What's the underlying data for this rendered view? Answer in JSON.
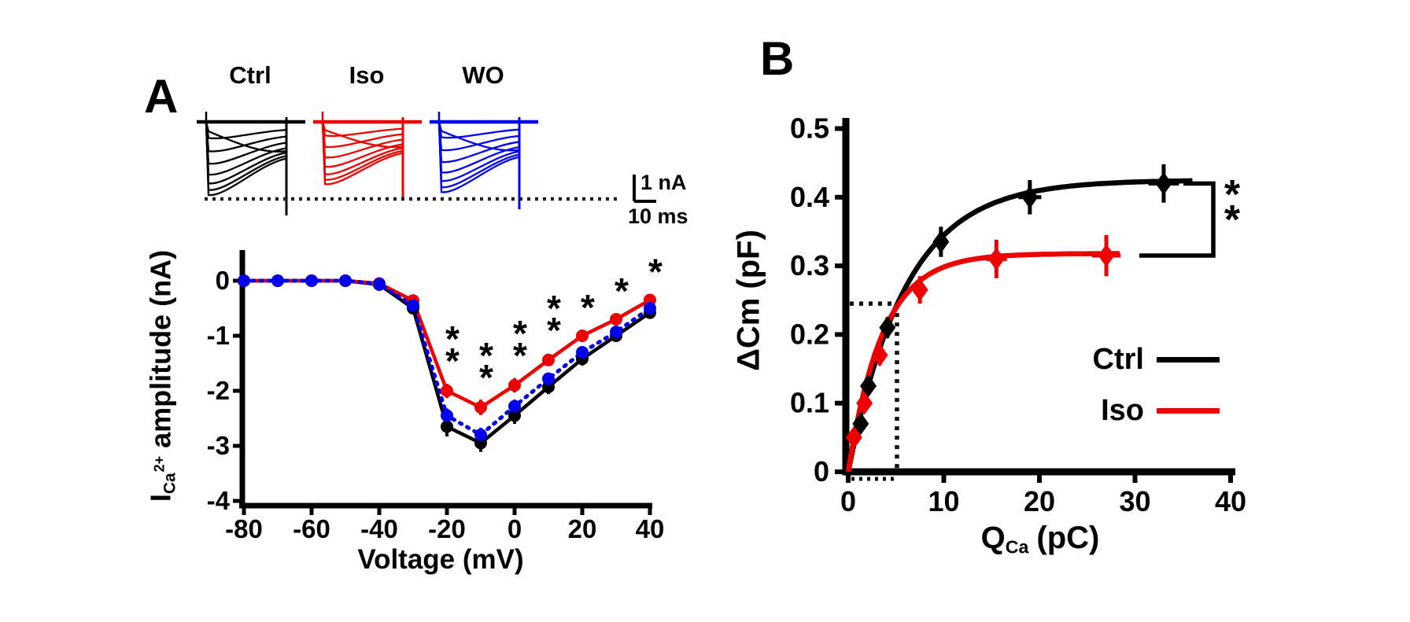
{
  "figure": {
    "panel_a": {
      "label": "A",
      "trace_groups": [
        {
          "name": "Ctrl",
          "color": "#000000",
          "relative_amplitude": 1.0
        },
        {
          "name": "Iso",
          "color": "#ee0000",
          "relative_amplitude": 0.85
        },
        {
          "name": "WO",
          "color": "#0000ee",
          "relative_amplitude": 0.96
        }
      ],
      "scalebar": {
        "amplitude": "1 nA",
        "duration": "10 ms"
      }
    },
    "panel_b": {
      "label": "B",
      "legend": [
        {
          "label": "Ctrl",
          "color": "#000000"
        },
        {
          "label": "Iso",
          "color": "#ee0000"
        }
      ],
      "significance_bracket_label": "**"
    }
  },
  "chart_data": [
    {
      "id": "iv_curve",
      "type": "line",
      "title": "",
      "xlabel": "Voltage (mV)",
      "ylabel": "ICa2+ amplitude (nA)",
      "ylabel_parts": {
        "main": "I",
        "sub": "Ca",
        "sup": "2+",
        "rest": "amplitude (nA)"
      },
      "xlim": [
        -80,
        40
      ],
      "ylim": [
        -4,
        0.5
      ],
      "xticks": [
        -80,
        -60,
        -40,
        -20,
        0,
        20,
        40
      ],
      "xtick_labels": [
        "-80",
        "-60",
        "-40",
        "-20",
        "0",
        "20",
        "40"
      ],
      "yticks": [
        0,
        -1,
        -2,
        -3,
        -4
      ],
      "ytick_labels": [
        "0",
        "-1",
        "-2",
        "-3",
        "-4"
      ],
      "grid": false,
      "x": [
        -80,
        -70,
        -60,
        -50,
        -40,
        -30,
        -20,
        -10,
        0,
        10,
        20,
        30,
        40
      ],
      "series": [
        {
          "name": "Ctrl",
          "color": "#000000",
          "line_style": "solid",
          "marker": "circle",
          "values": [
            0,
            0,
            0,
            0,
            -0.07,
            -0.5,
            -2.65,
            -2.95,
            -2.45,
            -1.93,
            -1.42,
            -1.0,
            -0.58
          ],
          "errors": [
            0.02,
            0.02,
            0.02,
            0.02,
            0.03,
            0.06,
            0.18,
            0.16,
            0.15,
            0.13,
            0.12,
            0.1,
            0.08
          ]
        },
        {
          "name": "Iso",
          "color": "#ee0000",
          "line_style": "solid",
          "marker": "circle",
          "values": [
            0,
            0,
            0,
            0,
            -0.05,
            -0.36,
            -2.0,
            -2.3,
            -1.9,
            -1.44,
            -1.0,
            -0.7,
            -0.35
          ],
          "errors": [
            0.02,
            0.02,
            0.02,
            0.02,
            0.03,
            0.05,
            0.13,
            0.14,
            0.13,
            0.11,
            0.09,
            0.07,
            0.06
          ]
        },
        {
          "name": "WO",
          "color": "#0000ee",
          "line_style": "dotted",
          "marker": "circle",
          "values": [
            0,
            0,
            0,
            0,
            -0.06,
            -0.45,
            -2.45,
            -2.8,
            -2.28,
            -1.78,
            -1.3,
            -0.93,
            -0.5
          ],
          "errors": [
            0.02,
            0.02,
            0.02,
            0.02,
            0.03,
            0.05,
            0.13,
            0.13,
            0.12,
            0.11,
            0.09,
            0.08,
            0.06
          ]
        }
      ],
      "significance": [
        {
          "voltage": -20,
          "label": "**"
        },
        {
          "voltage": -10,
          "label": "**"
        },
        {
          "voltage": 0,
          "label": "**"
        },
        {
          "voltage": 10,
          "label": "**"
        },
        {
          "voltage": 20,
          "label": "*"
        },
        {
          "voltage": 30,
          "label": "*"
        },
        {
          "voltage": 40,
          "label": "*"
        }
      ]
    },
    {
      "id": "cm_vs_qca",
      "type": "scatter",
      "title": "",
      "xlabel": "QCa (pC)",
      "xlabel_parts": {
        "main": "Q",
        "sub": "Ca",
        "rest": "(pC)"
      },
      "ylabel": "ΔCm (pF)",
      "xlim": [
        0,
        40
      ],
      "ylim": [
        0,
        0.5
      ],
      "xticks": [
        0,
        10,
        20,
        30,
        40
      ],
      "xtick_labels": [
        "0",
        "10",
        "20",
        "30",
        "40"
      ],
      "yticks": [
        0,
        0.1,
        0.2,
        0.3,
        0.4,
        0.5
      ],
      "ytick_labels": [
        "0",
        "0.1",
        "0.2",
        "0.3",
        "0.4",
        "0.5"
      ],
      "grid": false,
      "legend_position": "lower right",
      "series": [
        {
          "name": "Ctrl",
          "color": "#000000",
          "marker": "diamond",
          "points": [
            [
              1.3,
              0.07
            ],
            [
              2.1,
              0.125
            ],
            [
              4.1,
              0.21
            ],
            [
              9.7,
              0.335
            ],
            [
              19,
              0.4
            ],
            [
              33,
              0.42
            ]
          ],
          "x_errors": [
            0.2,
            0.25,
            0.35,
            0.7,
            1.2,
            1.6
          ],
          "y_errors": [
            0.01,
            0.012,
            0.015,
            0.022,
            0.025,
            0.028
          ],
          "fit": {
            "model": "exponential_saturation",
            "vmax": 0.425,
            "tau": 6.0,
            "q_end": 36
          }
        },
        {
          "name": "Iso",
          "color": "#ee0000",
          "marker": "diamond",
          "points": [
            [
              0.6,
              0.05
            ],
            [
              1.7,
              0.1
            ],
            [
              3.3,
              0.17
            ],
            [
              7.5,
              0.265
            ],
            [
              15.5,
              0.31
            ],
            [
              27,
              0.315
            ]
          ],
          "x_errors": [
            0.15,
            0.2,
            0.3,
            0.6,
            1.1,
            1.5
          ],
          "y_errors": [
            0.01,
            0.012,
            0.015,
            0.02,
            0.028,
            0.03
          ],
          "fit": {
            "model": "exponential_saturation",
            "vmax": 0.318,
            "tau": 3.6,
            "q_end": 28.5
          }
        }
      ],
      "dashed_guides": {
        "y": 0.245,
        "x": 5.1
      },
      "significance": {
        "label": "**",
        "between": [
          "Ctrl",
          "Iso"
        ]
      }
    }
  ]
}
